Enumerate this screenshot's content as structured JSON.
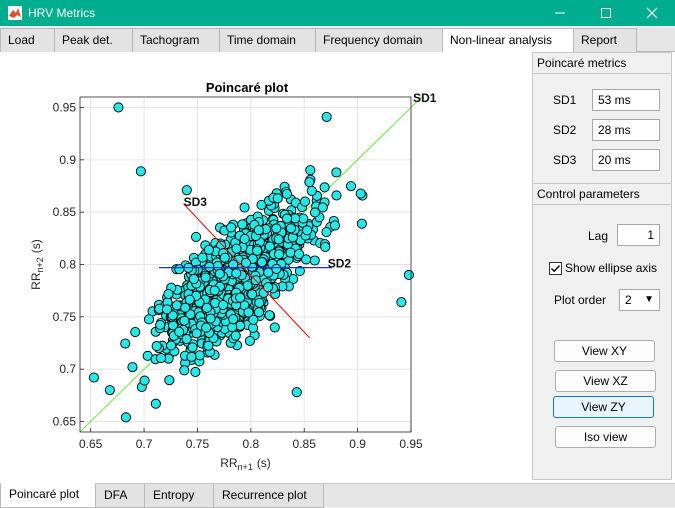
{
  "window": {
    "title": "HRV Metrics",
    "accent": "#00ad8e"
  },
  "top_tabs": [
    "Load",
    "Peak det.",
    "Tachogram",
    "Time domain",
    "Frequency domain",
    "Non-linear analysis",
    "Report"
  ],
  "active_top_tab": "Non-linear analysis",
  "bottom_tabs": [
    "Poincaré plot",
    "DFA",
    "Entropy",
    "Recurrence plot"
  ],
  "active_bottom_tab": "Poincaré plot",
  "metrics": {
    "title": "Poincaré metrics",
    "sd1_label": "SD1",
    "sd1_value": "53 ms",
    "sd2_label": "SD2",
    "sd2_value": "28 ms",
    "sd3_label": "SD3",
    "sd3_value": "20 ms"
  },
  "control": {
    "title": "Control parameters",
    "lag_label": "Lag",
    "lag_value": "1",
    "ellipse_label": "Show ellipse axis",
    "ellipse_checked": true,
    "order_label": "Plot order",
    "order_value": "2",
    "view_xy": "View XY",
    "view_xz": "View XZ",
    "view_zy": "View ZY",
    "iso_view": "Iso view"
  },
  "chart_data": {
    "type": "scatter",
    "title": "Poincaré plot",
    "xlabel": "RR",
    "xlabel_sub": "n+1",
    "xlabel_unit": "(s)",
    "ylabel": "RR",
    "ylabel_sub": "n+2",
    "ylabel_unit": "(s)",
    "xlim": [
      0.64,
      0.95
    ],
    "ylim": [
      0.64,
      0.96
    ],
    "xticks": [
      "0.65",
      "0.7",
      "0.75",
      "0.8",
      "0.85",
      "0.9",
      "0.95"
    ],
    "yticks": [
      "0.65",
      "0.7",
      "0.75",
      "0.8",
      "0.85",
      "0.9",
      "0.95"
    ],
    "grid": true,
    "marker_color": "#25e8e8",
    "identity_line_color": "#7fe85a",
    "sd2_axis_color": "#1a2fe0",
    "sd3_axis_color": "#e01a1a",
    "annotations": [
      {
        "text": "SD1",
        "x": 0.952,
        "y": 0.955
      },
      {
        "text": "SD2",
        "x": 0.872,
        "y": 0.797
      },
      {
        "text": "SD3",
        "x": 0.737,
        "y": 0.856
      }
    ],
    "sd2_axis": {
      "x": [
        0.714,
        0.876
      ],
      "y": [
        0.797,
        0.797
      ]
    },
    "sd3_axis": {
      "x": [
        0.737,
        0.855
      ],
      "y": [
        0.858,
        0.73
      ]
    },
    "outliers": [
      {
        "x": 0.676,
        "y": 0.95
      },
      {
        "x": 0.697,
        "y": 0.889
      },
      {
        "x": 0.871,
        "y": 0.941
      },
      {
        "x": 0.74,
        "y": 0.871
      },
      {
        "x": 0.948,
        "y": 0.79
      },
      {
        "x": 0.941,
        "y": 0.764
      },
      {
        "x": 0.843,
        "y": 0.678
      },
      {
        "x": 0.653,
        "y": 0.692
      },
      {
        "x": 0.668,
        "y": 0.68
      },
      {
        "x": 0.683,
        "y": 0.654
      },
      {
        "x": 0.711,
        "y": 0.667
      },
      {
        "x": 0.904,
        "y": 0.839
      }
    ],
    "cloud": {
      "center_x": 0.786,
      "center_y": 0.786,
      "spread_major": 0.045,
      "spread_minor": 0.018,
      "count": 1100,
      "seed": 7
    }
  }
}
